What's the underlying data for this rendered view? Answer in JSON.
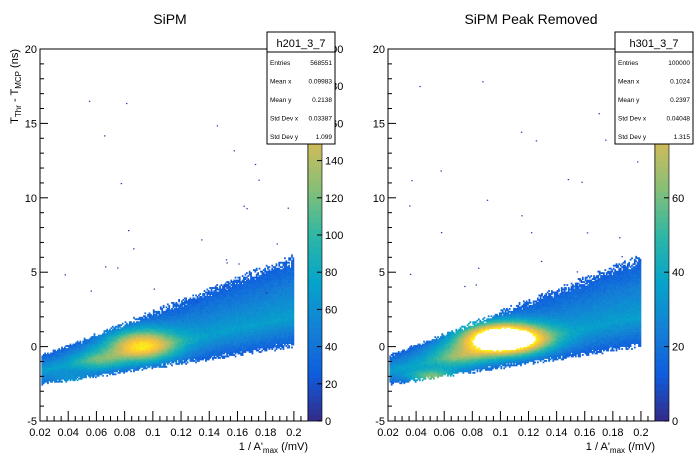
{
  "chart_data": [
    {
      "type": "heatmap",
      "title": "SiPM",
      "xlabel_main": "1 / A'",
      "xlabel_sub": "max",
      "xlabel_unit": " (/mV)",
      "ylabel_main": "T",
      "ylabel_sub1": "Thr",
      "ylabel_mid": " - T",
      "ylabel_sub2": "MCP",
      "ylabel_unit": " (ns)",
      "xlim": [
        0.02,
        0.21
      ],
      "ylim": [
        -5,
        20
      ],
      "xticks": [
        "0.02",
        "0.04",
        "0.06",
        "0.08",
        "0.1",
        "0.12",
        "0.14",
        "0.16",
        "0.18",
        "0.2"
      ],
      "yticks": [
        "-5",
        "0",
        "5",
        "10",
        "15",
        "20"
      ],
      "zlim": [
        0,
        200
      ],
      "zticks": [
        "0",
        "20",
        "40",
        "60",
        "80",
        "100",
        "120",
        "140",
        "160",
        "180",
        "200"
      ],
      "saturated": false,
      "stats": {
        "name": "h201_3_7",
        "rows": [
          {
            "label": "Entries",
            "value": "568551"
          },
          {
            "label": "Mean x",
            "value": "0.09983"
          },
          {
            "label": "Mean y",
            "value": "0.2138"
          },
          {
            "label": "Std Dev x",
            "value": "0.03387"
          },
          {
            "label": "Std Dev y",
            "value": "1.099"
          }
        ]
      }
    },
    {
      "type": "heatmap",
      "title": "SiPM Peak Removed",
      "xlabel_main": "1 / A'",
      "xlabel_sub": "max",
      "xlabel_unit": " (/mV)",
      "xlim": [
        0.02,
        0.21
      ],
      "ylim": [
        -5,
        20
      ],
      "xticks": [
        "0.02",
        "0.04",
        "0.06",
        "0.08",
        "0.1",
        "0.12",
        "0.14",
        "0.16",
        "0.18",
        "0.2"
      ],
      "yticks": [
        "-5",
        "0",
        "5",
        "10",
        "15",
        "20"
      ],
      "zlim": [
        0,
        100
      ],
      "zticks": [
        "0",
        "20",
        "40",
        "60",
        "80",
        "100"
      ],
      "saturated": true,
      "stats": {
        "name": "h301_3_7",
        "rows": [
          {
            "label": "Entries",
            "value": "100000"
          },
          {
            "label": "Mean x",
            "value": "0.1024"
          },
          {
            "label": "Mean y",
            "value": "0.2397"
          },
          {
            "label": "Std Dev x",
            "value": "0.04048"
          },
          {
            "label": "Std Dev y",
            "value": "1.315"
          }
        ]
      }
    }
  ],
  "colors": {
    "palette": [
      "#352a87",
      "#0f5cdd",
      "#1481d6",
      "#06a4ca",
      "#2eb7a4",
      "#87bf77",
      "#d1bb59",
      "#fec832",
      "#f9fb0e"
    ],
    "saturated": "#ffffff"
  }
}
